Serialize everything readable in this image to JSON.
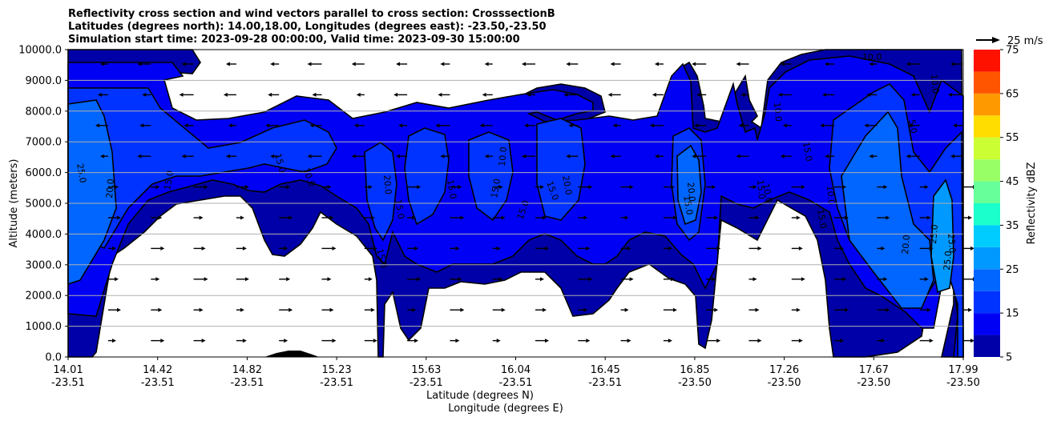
{
  "chart_data": {
    "type": "contour",
    "title_lines": [
      "Reflectivity cross section and wind vectors parallel to cross section: CrosssectionB",
      "Latitudes (degrees north): 14.00,18.00, Longitudes (degrees east): -23.50,-23.50",
      "Simulation start time: 2023-09-28 00:00:00, Valid time: 2023-09-30 15:00:00"
    ],
    "ylabel": "Altitude (meters)",
    "xlabel_lines": [
      "Latitude (degrees N)",
      "Longitude (degrees E)"
    ],
    "ylim": [
      0,
      10000
    ],
    "y_ticks": [
      "0.0",
      "1000.0",
      "2000.0",
      "3000.0",
      "4000.0",
      "5000.0",
      "6000.0",
      "7000.0",
      "8000.0",
      "9000.0",
      "10000.0"
    ],
    "x_ticks": [
      {
        "lat": "14.01",
        "lon": "-23.51"
      },
      {
        "lat": "14.42",
        "lon": "-23.51"
      },
      {
        "lat": "14.82",
        "lon": "-23.51"
      },
      {
        "lat": "15.23",
        "lon": "-23.51"
      },
      {
        "lat": "15.63",
        "lon": "-23.51"
      },
      {
        "lat": "16.04",
        "lon": "-23.51"
      },
      {
        "lat": "16.45",
        "lon": "-23.51"
      },
      {
        "lat": "16.85",
        "lon": "-23.50"
      },
      {
        "lat": "17.26",
        "lon": "-23.50"
      },
      {
        "lat": "17.67",
        "lon": "-23.50"
      },
      {
        "lat": "17.99",
        "lon": "-23.50"
      }
    ],
    "grid": "horizontal",
    "colorbar": {
      "label": "Reflectivity dBZ",
      "levels": [
        5,
        10,
        15,
        20,
        25,
        30,
        35,
        40,
        45,
        50,
        55,
        60,
        65,
        70,
        75
      ],
      "tick_labels": [
        "5",
        "15",
        "25",
        "35",
        "45",
        "55",
        "65",
        "75"
      ],
      "colors": [
        "#0000a8",
        "#0000f5",
        "#0033ff",
        "#0066ff",
        "#0099ff",
        "#00ccff",
        "#1affcc",
        "#66ff99",
        "#99ff66",
        "#ccff33",
        "#ffdd00",
        "#ff9900",
        "#ff5500",
        "#ff1100",
        "#aa0000"
      ]
    },
    "contour_labels": [
      "25.0",
      "20.0",
      "15.0",
      "15.0",
      "10.0",
      "20.0",
      "15.0",
      "15.0",
      "15.0",
      "15.0",
      "15.0",
      "10.0",
      "20.0",
      "15.0",
      "15.0",
      "20.0",
      "15.0",
      "10.0",
      "10.0",
      "15.0",
      "10.0",
      "15.0",
      "20.0",
      "25.0",
      "25.0",
      "25.0",
      "10.0",
      "5.0",
      "10.0"
    ],
    "quiver_key": "25 m/s"
  }
}
